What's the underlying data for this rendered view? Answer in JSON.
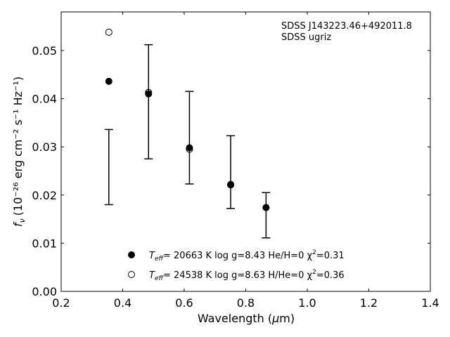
{
  "chart_data": {
    "type": "scatter",
    "title": "",
    "xlabel": {
      "text": "Wavelength (",
      "symbol": "μ",
      "unit_suffix": "m)"
    },
    "ylabel": {
      "prefix": "f",
      "sub": "ν",
      "units": "(10⁻²⁶ erg cm⁻² s⁻¹ Hz⁻¹)"
    },
    "xlim": [
      0.2,
      1.4
    ],
    "ylim": [
      0.0,
      0.058
    ],
    "xticks": [
      0.2,
      0.4,
      0.6,
      0.8,
      1.0,
      1.2,
      1.4
    ],
    "xtick_labels": [
      "0.2",
      "0.4",
      "0.6",
      "0.8",
      "1.0",
      "1.2",
      "1.4"
    ],
    "yticks": [
      0.0,
      0.01,
      0.02,
      0.03,
      0.04,
      0.05
    ],
    "ytick_labels": [
      "0.00",
      "0.01",
      "0.02",
      "0.03",
      "0.04",
      "0.05"
    ],
    "grid": false,
    "annotation": [
      "SDSS J143223.46+492011.8",
      "SDSS ugriz"
    ],
    "observed": {
      "x": [
        0.355,
        0.484,
        0.617,
        0.751,
        0.866
      ],
      "lower": [
        0.018,
        0.0275,
        0.0223,
        0.0172,
        0.0111
      ],
      "upper": [
        0.0336,
        0.0512,
        0.0415,
        0.0323,
        0.0205
      ]
    },
    "series": [
      {
        "marker": "filled-circle",
        "x": [
          0.355,
          0.484,
          0.617,
          0.751,
          0.866
        ],
        "y": [
          0.0436,
          0.041,
          0.0298,
          0.0221,
          0.0174
        ],
        "legend": {
          "teff_label": "T",
          "teff_sub": "eff",
          "rest": "= 20663 K  log g=8.43  He/H=0  χ",
          "chi_sup": "2",
          "chi_val": "=0.31"
        }
      },
      {
        "marker": "open-circle",
        "x": [
          0.355,
          0.484,
          0.617,
          0.751,
          0.866
        ],
        "y": [
          0.0538,
          0.0413,
          0.0295,
          0.0222,
          0.0174
        ],
        "legend": {
          "teff_label": "T",
          "teff_sub": "eff",
          "rest": "= 24538 K  log g=8.63  H/He=0  χ",
          "chi_sup": "2",
          "chi_val": "=0.36"
        }
      }
    ],
    "legend_position": "lower-center",
    "colors": {
      "marker": "#000000",
      "axis": "#000000"
    }
  }
}
